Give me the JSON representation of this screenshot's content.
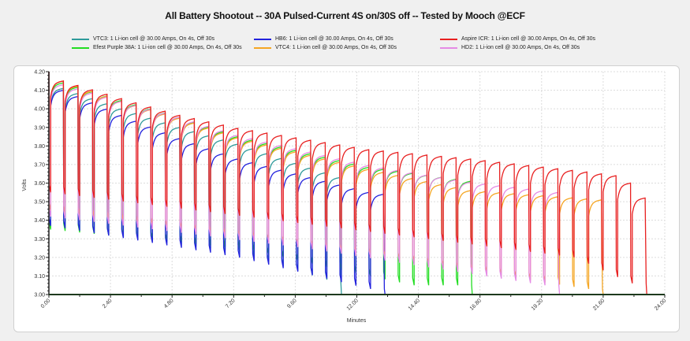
{
  "chart_data": {
    "type": "line",
    "title": "All Battery Shootout -- 30A Pulsed-Current 4S on/30S off -- Tested by Mooch @ECF",
    "xlabel": "Minutes",
    "ylabel": "Volts",
    "xlim": [
      0,
      24
    ],
    "ylim": [
      3.0,
      4.2
    ],
    "xticks": [
      "0.00",
      "2.40",
      "4.80",
      "7.20",
      "9.60",
      "12.00",
      "14.40",
      "16.80",
      "19.20",
      "21.60",
      "24.00"
    ],
    "yticks": [
      "3.00",
      "3.10",
      "3.20",
      "3.30",
      "3.40",
      "3.50",
      "3.60",
      "3.70",
      "3.80",
      "3.90",
      "4.00",
      "4.10",
      "4.20"
    ],
    "grid": true,
    "legend_position": "top",
    "pulse_on_seconds": 4,
    "pulse_off_seconds": 30,
    "series": [
      {
        "name": "VTC3: 1 Li-ion cell @ 30.00 Amps, On 4s, Off 30s",
        "color": "#2e9a9a",
        "rest_peaks": [
          [
            0.57,
            4.11
          ],
          [
            2.83,
            4.0
          ],
          [
            5.1,
            3.9
          ],
          [
            7.37,
            3.81
          ],
          [
            11.33,
            3.63
          ]
        ],
        "pulse_minima": [
          [
            0.07,
            3.36
          ],
          [
            7.4,
            3.23
          ],
          [
            10.8,
            3.08
          ]
        ],
        "cutoff_time": 11.4
      },
      {
        "name": "Efest Purple 38A: 1 Li-ion cell @ 30.00 Amps, On 4s, Off 30s",
        "color": "#22dd22",
        "rest_peaks": [
          [
            0.57,
            4.14
          ],
          [
            2.83,
            4.045
          ],
          [
            5.1,
            3.955
          ],
          [
            7.37,
            3.85
          ],
          [
            12.47,
            3.685
          ],
          [
            16.43,
            3.61
          ]
        ],
        "pulse_minima": [
          [
            0.07,
            3.35
          ],
          [
            7.4,
            3.25
          ],
          [
            14.2,
            3.05
          ]
        ],
        "cutoff_time": 16.5
      },
      {
        "name": "HB6: 1 Li-ion cell @ 30.00 Amps, On 4s, Off 30s",
        "color": "#2222dd",
        "rest_peaks": [
          [
            0.57,
            4.1
          ],
          [
            2.83,
            3.965
          ],
          [
            5.1,
            3.84
          ],
          [
            7.37,
            3.73
          ],
          [
            12.47,
            3.55
          ],
          [
            13.03,
            3.54
          ]
        ],
        "pulse_minima": [
          [
            0.07,
            3.37
          ],
          [
            7.4,
            3.2
          ],
          [
            12.5,
            3.03
          ]
        ],
        "cutoff_time": 13.1
      },
      {
        "name": "VTC4: 1 Li-ion cell @ 30.00 Amps, On 4s, Off 30s",
        "color": "#f5a623",
        "rest_peaks": [
          [
            0.57,
            4.15
          ],
          [
            2.83,
            4.04
          ],
          [
            5.1,
            3.95
          ],
          [
            7.37,
            3.844
          ],
          [
            12.47,
            3.674
          ],
          [
            16.43,
            3.56
          ],
          [
            21.53,
            3.51
          ]
        ],
        "pulse_minima": [
          [
            0.07,
            3.45
          ],
          [
            12,
            3.22
          ],
          [
            21,
            3.03
          ]
        ],
        "cutoff_time": 21.6
      },
      {
        "name": "HD2: 1 Li-ion cell @ 30.00 Amps, On 4s, Off 30s",
        "color": "#e58be5",
        "rest_peaks": [
          [
            0.57,
            4.13
          ],
          [
            2.83,
            4.04
          ],
          [
            5.1,
            3.955
          ],
          [
            7.37,
            3.858
          ],
          [
            12.47,
            3.695
          ],
          [
            16.43,
            3.605
          ],
          [
            19.83,
            3.55
          ]
        ],
        "pulse_minima": [
          [
            0.07,
            3.42
          ],
          [
            10,
            3.25
          ],
          [
            19.3,
            3.05
          ]
        ],
        "cutoff_time": 19.9
      },
      {
        "name": "Aspire ICR: 1 Li-ion cell @ 30.00 Amps, On 4s, Off 30s",
        "color": "#e82020",
        "rest_peaks": [
          [
            0.57,
            4.15
          ],
          [
            2.83,
            4.055
          ],
          [
            5.1,
            3.965
          ],
          [
            7.37,
            3.895
          ],
          [
            12.47,
            3.78
          ],
          [
            16.43,
            3.73
          ],
          [
            20.97,
            3.66
          ],
          [
            22.1,
            3.64
          ],
          [
            22.67,
            3.6
          ],
          [
            23.23,
            3.52
          ]
        ],
        "pulse_minima": [
          [
            0.07,
            3.55
          ],
          [
            16.5,
            3.27
          ],
          [
            20.5,
            3.2
          ],
          [
            22.7,
            3.06
          ]
        ],
        "cutoff_time": 23.3
      }
    ]
  }
}
